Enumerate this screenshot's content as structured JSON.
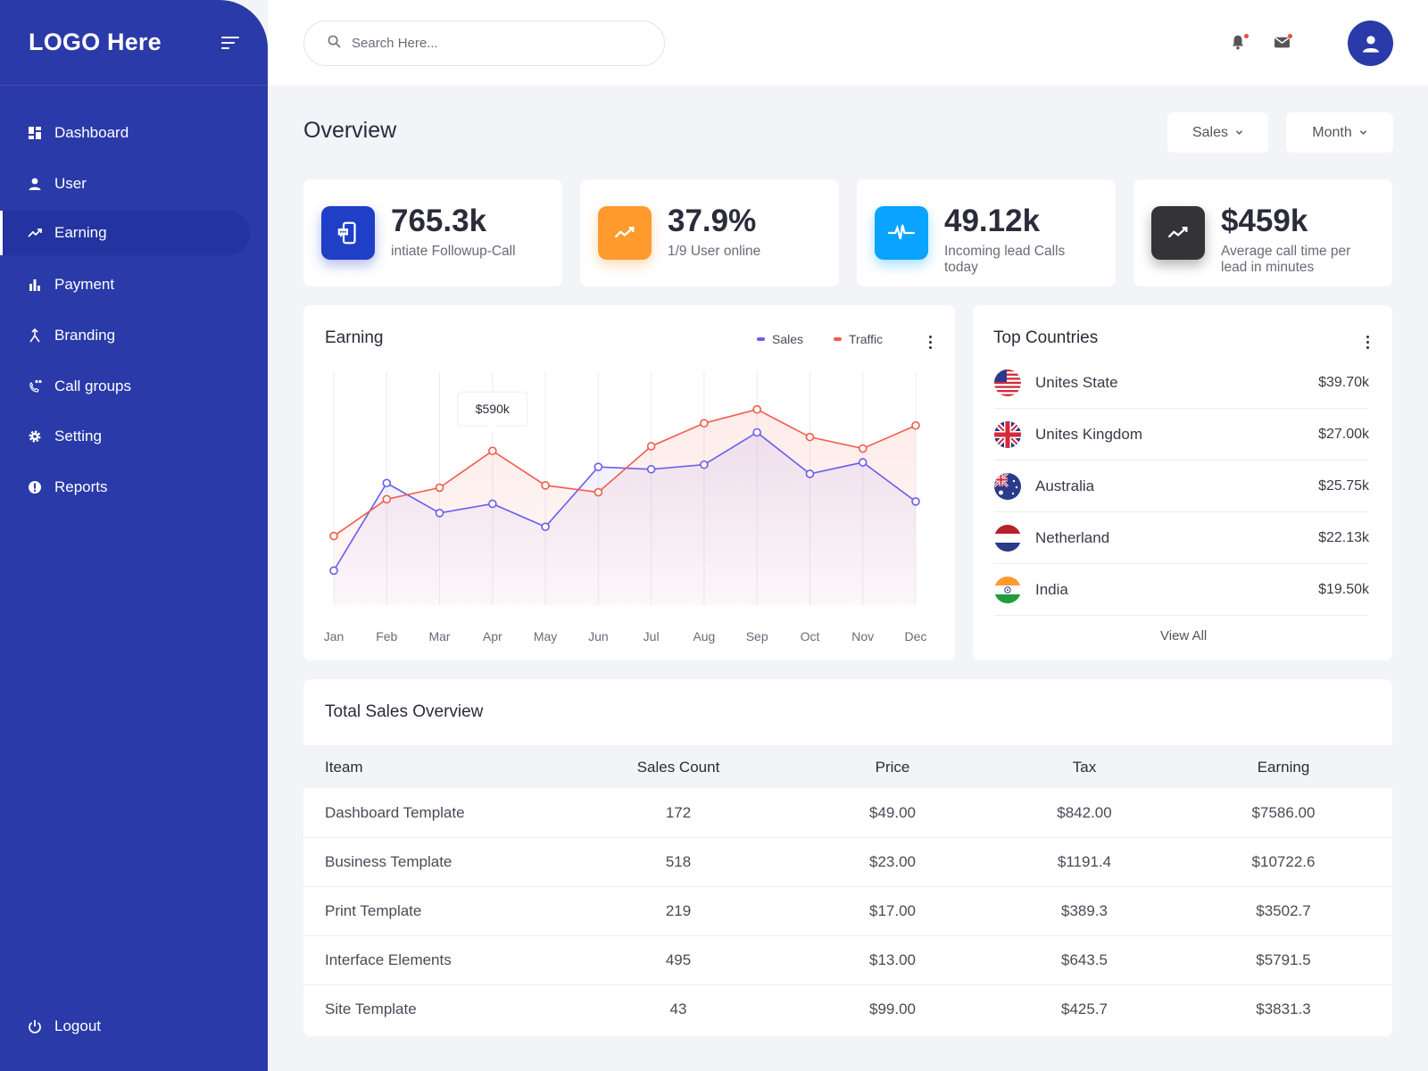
{
  "brand": {
    "logo": "LOGO Here"
  },
  "nav": {
    "items": [
      {
        "label": "Dashboard",
        "icon": "dashboard-icon"
      },
      {
        "label": "User",
        "icon": "user-icon"
      },
      {
        "label": "Earning",
        "icon": "trend-icon",
        "active": true
      },
      {
        "label": "Payment",
        "icon": "bar-chart-icon"
      },
      {
        "label": "Branding",
        "icon": "branding-icon"
      },
      {
        "label": "Call groups",
        "icon": "call-group-icon"
      },
      {
        "label": "Setting",
        "icon": "gear-icon"
      },
      {
        "label": "Reports",
        "icon": "alert-icon"
      }
    ],
    "logout": "Logout"
  },
  "search": {
    "placeholder": "Search Here..."
  },
  "header": {
    "title": "Overview",
    "filter_type": "Sales",
    "filter_period": "Month"
  },
  "stats": [
    {
      "value": "765.3k",
      "label": "intiate Followup-Call",
      "icon": "phone-chat-icon",
      "color": "#1f3fc6"
    },
    {
      "value": "37.9%",
      "label": "1/9 User online",
      "icon": "trend-icon",
      "color": "#ff9a2e"
    },
    {
      "value": "49.12k",
      "label": "Incoming lead Calls today",
      "icon": "pulse-icon",
      "color": "#0aa3ff"
    },
    {
      "value": "$459k",
      "label": "Average call time per lead in minutes",
      "icon": "trend-icon",
      "color": "#333338"
    }
  ],
  "earning": {
    "title": "Earning",
    "legend_sales": "Sales",
    "legend_traffic": "Traffic",
    "tooltip": "$590k"
  },
  "chart_data": {
    "type": "line",
    "title": "Earning",
    "categories": [
      "Jan",
      "Feb",
      "Mar",
      "Apr",
      "May",
      "Jun",
      "Jul",
      "Aug",
      "Sep",
      "Oct",
      "Nov",
      "Dec"
    ],
    "series": [
      {
        "name": "Sales",
        "color": "#6a5cf0",
        "values": [
          15,
          53,
          40,
          44,
          34,
          60,
          59,
          61,
          75,
          57,
          62,
          45
        ]
      },
      {
        "name": "Traffic",
        "color": "#f25b4a",
        "values": [
          30,
          46,
          51,
          67,
          52,
          49,
          69,
          79,
          85,
          73,
          68,
          78
        ]
      }
    ],
    "highlight": {
      "series": "Traffic",
      "category": "Apr",
      "label": "$590k"
    },
    "ylim": [
      0,
      100
    ],
    "grid": "vertical"
  },
  "countries": {
    "title": "Top Countries",
    "items": [
      {
        "name": "Unites State",
        "value": "$39.70k",
        "flag": "us-flag-icon"
      },
      {
        "name": "Unites Kingdom",
        "value": "$27.00k",
        "flag": "uk-flag-icon"
      },
      {
        "name": "Australia",
        "value": "$25.75k",
        "flag": "au-flag-icon"
      },
      {
        "name": "Netherland",
        "value": "$22.13k",
        "flag": "nl-flag-icon"
      },
      {
        "name": "India",
        "value": "$19.50k",
        "flag": "in-flag-icon"
      }
    ],
    "view_all": "View All"
  },
  "sales": {
    "title": "Total Sales Overview",
    "columns": [
      "Iteam",
      "Sales Count",
      "Price",
      "Tax",
      "Earning"
    ],
    "rows": [
      [
        "Dashboard Template",
        "172",
        "$49.00",
        "$842.00",
        "$7586.00"
      ],
      [
        "Business Template",
        "518",
        "$23.00",
        "$1191.4",
        "$10722.6"
      ],
      [
        "Print Template",
        "219",
        "$17.00",
        "$389.3",
        "$3502.7"
      ],
      [
        "Interface Elements",
        "495",
        "$13.00",
        "$643.5",
        "$5791.5"
      ],
      [
        "Site Template",
        "43",
        "$99.00",
        "$425.7",
        "$3831.3"
      ]
    ]
  },
  "colors": {
    "sidebar": "#2a3aa8",
    "accent": "#2a3aa8",
    "sales": "#6a5cf0",
    "traffic": "#f25b4a"
  }
}
